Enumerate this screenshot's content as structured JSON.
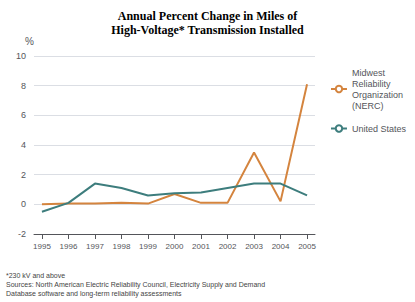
{
  "chart_data": {
    "type": "line",
    "title": "Annual Percent Change in Miles of\nHigh-Voltage* Transmission Installed",
    "y_label": "%",
    "x": [
      1995,
      1996,
      1997,
      1998,
      1999,
      2000,
      2001,
      2002,
      2003,
      2004,
      2005
    ],
    "series": [
      {
        "name": "Midwest\nReliability\nOrganization\n(NERC)",
        "color": "#d4843e",
        "values": [
          0.0,
          0.05,
          0.05,
          0.1,
          0.05,
          0.7,
          0.1,
          0.1,
          3.5,
          0.2,
          8.1
        ]
      },
      {
        "name": "United States",
        "color": "#3d7d7d",
        "values": [
          -0.5,
          0.1,
          1.4,
          1.1,
          0.6,
          0.75,
          0.8,
          1.1,
          1.4,
          1.4,
          0.6
        ]
      }
    ],
    "xlim": [
      1994.7,
      2005.3
    ],
    "xticks": [
      1995,
      1996,
      1997,
      1998,
      1999,
      2000,
      2001,
      2002,
      2003,
      2004,
      2005
    ],
    "ylim": [
      -2,
      10
    ],
    "yticks": [
      -2,
      0,
      2,
      4,
      6,
      8,
      10
    ],
    "grid": true,
    "legend": "right",
    "annotations": [
      "*230 kV and above",
      "Sources: North American Electric Reliability Council, Electricity Supply and Demand\nDatabase software and long-term reliability assessments"
    ]
  }
}
